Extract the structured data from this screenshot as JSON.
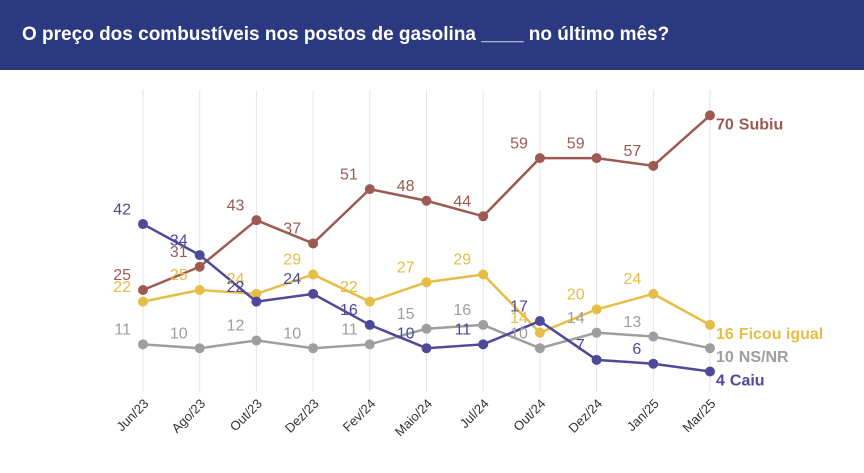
{
  "chart_data": {
    "type": "line",
    "title": "O preço dos combustíveis nos postos de gasolina ____ no último mês?",
    "categories": [
      "Jun/23",
      "Ago/23",
      "Out/23",
      "Dez/23",
      "Fev/24",
      "Maio/24",
      "Jul/24",
      "Out/24",
      "Dez/24",
      "Jan/25",
      "Mar/25"
    ],
    "series": [
      {
        "name": "Subiu",
        "color": "#9c5a52",
        "values": [
          25,
          31,
          43,
          37,
          51,
          48,
          44,
          59,
          59,
          57,
          70
        ]
      },
      {
        "name": "Ficou igual",
        "color": "#e6bd45",
        "values": [
          22,
          25,
          24,
          29,
          22,
          27,
          29,
          14,
          20,
          24,
          16
        ]
      },
      {
        "name": "NS/NR",
        "color": "#9e9e9e",
        "values": [
          11,
          10,
          12,
          10,
          11,
          15,
          16,
          10,
          14,
          13,
          10
        ]
      },
      {
        "name": "Caiu",
        "color": "#4e4a99",
        "values": [
          42,
          34,
          22,
          24,
          16,
          10,
          11,
          17,
          7,
          6,
          4
        ]
      }
    ],
    "ylim": [
      0,
      75
    ],
    "grid": true
  }
}
